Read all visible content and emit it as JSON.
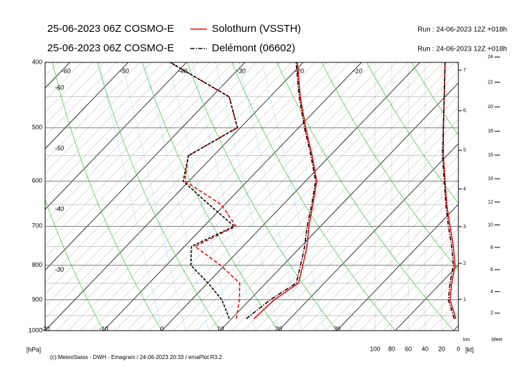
{
  "chart_data": {
    "type": "emagram",
    "ylabel": "[hPa]",
    "ylim": [
      400,
      1000
    ],
    "yticks": [
      400,
      500,
      600,
      700,
      800,
      900,
      1000
    ],
    "log_y": true,
    "temperature_ticks": [
      -60,
      -50,
      -40,
      -30,
      -20,
      -10,
      0,
      10,
      20,
      30
    ],
    "wind_label": "[kt]",
    "wind_xlim": [
      100,
      0
    ],
    "wind_ticks": [
      100,
      80,
      60,
      40,
      20,
      0
    ],
    "km_label": "km",
    "km_ticks": [
      1,
      2,
      3,
      4,
      5,
      6,
      7
    ],
    "kfeet_label": "kfeet",
    "kfeet_ticks": [
      2,
      4,
      6,
      8,
      10,
      12,
      14,
      16,
      18,
      20,
      22,
      24
    ],
    "pressure": [
      960,
      900,
      850,
      800,
      750,
      700,
      650,
      600,
      550,
      500,
      450,
      400
    ],
    "series": [
      {
        "name": "Solothurn (VSSTH)",
        "model": "25-06-2023 06Z COSMO-E",
        "run": "Run : 24-06-2023 12Z +018h",
        "color": "#ff0000",
        "dash": "solid",
        "temperature": [
          13.8,
          14.2,
          15.6,
          13.4,
          11.0,
          8.0,
          5.1,
          1.9,
          -3.1,
          -8.8,
          -14.8,
          -21.0
        ],
        "dewpoint": [
          10.8,
          8.2,
          5.5,
          -0.7,
          -8.2,
          -4.5,
          -10.6,
          -20.7,
          -24.3,
          -20.5,
          -27.0,
          -42.8
        ],
        "wind": [
          3,
          10,
          8,
          4,
          6,
          10,
          14,
          16,
          18,
          18,
          17,
          16
        ]
      },
      {
        "name": "Delémont (06602)",
        "model": "25-06-2023 06Z COSMO-E",
        "run": "Run : 24-06-2023 12Z +018h",
        "color": "#000000",
        "dash": "dashdot",
        "temperature": [
          12.5,
          13.5,
          15.2,
          13.0,
          10.6,
          7.7,
          4.9,
          1.7,
          -3.3,
          -9.0,
          -15.0,
          -21.2
        ],
        "dewpoint": [
          9.6,
          5.2,
          0.1,
          -5.8,
          -8.8,
          -4.8,
          -12.7,
          -21.0,
          -24.3,
          -20.5,
          -27.0,
          -42.8
        ],
        "wind": [
          5,
          12,
          10,
          6,
          8,
          12,
          15,
          17,
          19,
          18,
          17,
          16
        ]
      }
    ]
  },
  "footer": "(c) MeteoSwiss - DWH - Emagram / 24-06-2023 20:33 / emaPlot R3.2"
}
